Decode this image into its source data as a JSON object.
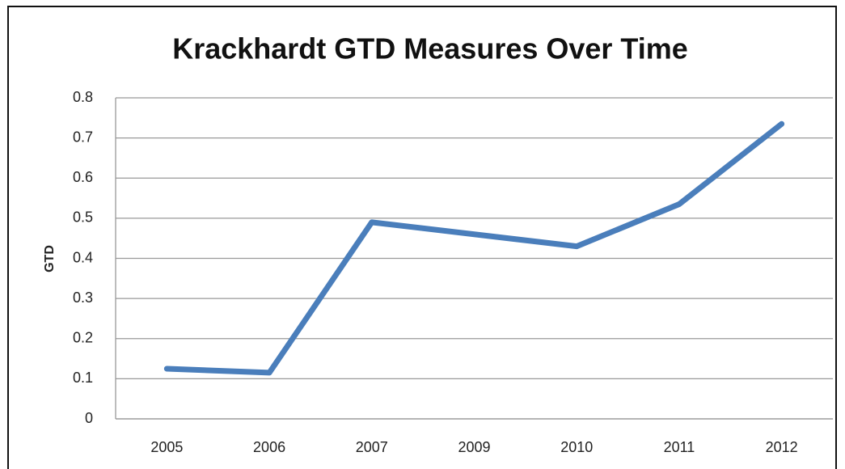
{
  "chart_data": {
    "type": "line",
    "title": "Krackhardt GTD Measures Over Time",
    "y_label": "GTD",
    "categories": [
      "2005",
      "2006",
      "2007",
      "2009",
      "2010",
      "2011",
      "2012"
    ],
    "values": [
      0.125,
      0.115,
      0.49,
      0.46,
      0.43,
      0.535,
      0.735
    ],
    "color": "#4a7ebb",
    "ylim": [
      0,
      0.8
    ],
    "yticks": [
      0,
      0.1,
      0.2,
      0.3,
      0.4,
      0.5,
      0.6,
      0.7,
      0.8
    ],
    "grid": true,
    "legend": false
  }
}
